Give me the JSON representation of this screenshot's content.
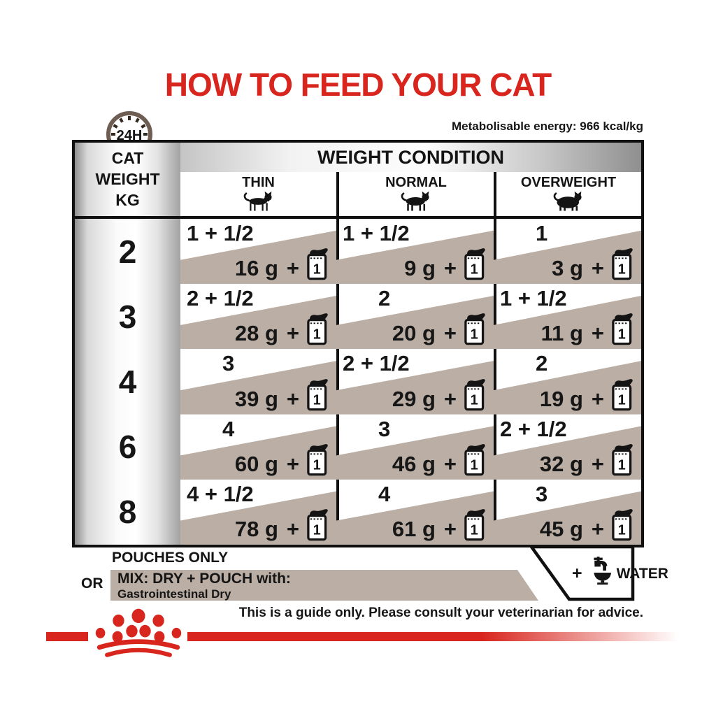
{
  "page": {
    "title": "HOW TO FEED YOUR CAT",
    "energy_note": "Metabolisable energy: 966 kcal/kg",
    "disclaimer": "This is a guide only. Please consult your veterinarian for advice."
  },
  "icons": {
    "clock_label": "24H",
    "plus": "+",
    "pouch_unit": "1",
    "names": {
      "clock": "24h-clock-icon",
      "pouch": "pouch-icon",
      "water": "water-tap-bowl-icon",
      "cats": [
        "thin-cat-icon",
        "normal-cat-icon",
        "overweight-cat-icon"
      ],
      "logo": "royal-canin-crown-logo"
    }
  },
  "table": {
    "row_header_lines": [
      "CAT",
      "WEIGHT",
      "KG"
    ],
    "header": "WEIGHT CONDITION"
  },
  "legend": {
    "pouches_only": "POUCHES ONLY",
    "or": "OR",
    "mix_line1": "MIX: DRY + POUCH with:",
    "mix_line2": "Gastrointestinal Dry",
    "water": "WATER"
  },
  "colors": {
    "accent_red": "#d8251d",
    "taupe": "#bbaea5",
    "clock_brown": "#6e5d52"
  },
  "chart_data": {
    "type": "table",
    "title": "HOW TO FEED YOUR CAT",
    "subtitle": "Metabolisable energy: 966 kcal/kg",
    "row_header": "CAT WEIGHT KG",
    "columns": [
      "THIN",
      "NORMAL",
      "OVERWEIGHT"
    ],
    "weights_kg": [
      2,
      3,
      4,
      6,
      8
    ],
    "legend": {
      "white_area": "POUCHES ONLY",
      "shaded_area": "OR MIX: DRY + POUCH with: Gastrointestinal Dry",
      "note": "+ WATER"
    },
    "rows": [
      {
        "weight_kg": "2",
        "cells": [
          {
            "pouches": "1 + 1/2",
            "dry_g": "16"
          },
          {
            "pouches": "1 + 1/2",
            "dry_g": "9"
          },
          {
            "pouches": "1",
            "dry_g": "3"
          }
        ]
      },
      {
        "weight_kg": "3",
        "cells": [
          {
            "pouches": "2 + 1/2",
            "dry_g": "28"
          },
          {
            "pouches": "2",
            "dry_g": "20"
          },
          {
            "pouches": "1 + 1/2",
            "dry_g": "11"
          }
        ]
      },
      {
        "weight_kg": "4",
        "cells": [
          {
            "pouches": "3",
            "dry_g": "39"
          },
          {
            "pouches": "2 + 1/2",
            "dry_g": "29"
          },
          {
            "pouches": "2",
            "dry_g": "19"
          }
        ]
      },
      {
        "weight_kg": "6",
        "cells": [
          {
            "pouches": "4",
            "dry_g": "60"
          },
          {
            "pouches": "3",
            "dry_g": "46"
          },
          {
            "pouches": "2 + 1/2",
            "dry_g": "32"
          }
        ]
      },
      {
        "weight_kg": "8",
        "cells": [
          {
            "pouches": "4 + 1/2",
            "dry_g": "78"
          },
          {
            "pouches": "4",
            "dry_g": "61"
          },
          {
            "pouches": "3",
            "dry_g": "45"
          }
        ]
      }
    ],
    "dry_unit": "g"
  }
}
